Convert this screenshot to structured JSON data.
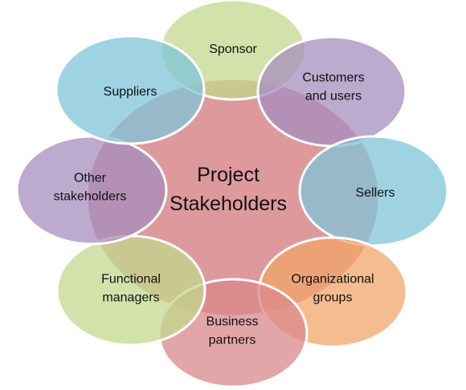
{
  "center": {
    "line1": "Project",
    "line2": "Stakeholders",
    "color": "#d9888b"
  },
  "nodes": [
    {
      "id": "sponsor",
      "lines": [
        "Sponsor"
      ],
      "color": "#c3d88e"
    },
    {
      "id": "customers",
      "lines": [
        "Customers",
        "and users"
      ],
      "color": "#a78dbf"
    },
    {
      "id": "sellers",
      "lines": [
        "Sellers"
      ],
      "color": "#7fc4d8"
    },
    {
      "id": "organizational",
      "lines": [
        "Organizational",
        "groups"
      ],
      "color": "#f2a56a"
    },
    {
      "id": "business",
      "lines": [
        "Business",
        "partners"
      ],
      "color": "#d9888b"
    },
    {
      "id": "functional",
      "lines": [
        "Functional",
        "managers"
      ],
      "color": "#c3d88e"
    },
    {
      "id": "other",
      "lines": [
        "Other",
        "stakeholders"
      ],
      "color": "#a78dbf"
    },
    {
      "id": "suppliers",
      "lines": [
        "Suppliers"
      ],
      "color": "#7fc4d8"
    }
  ],
  "theme": {
    "stroke": "#ffffff",
    "text": "#111111"
  }
}
